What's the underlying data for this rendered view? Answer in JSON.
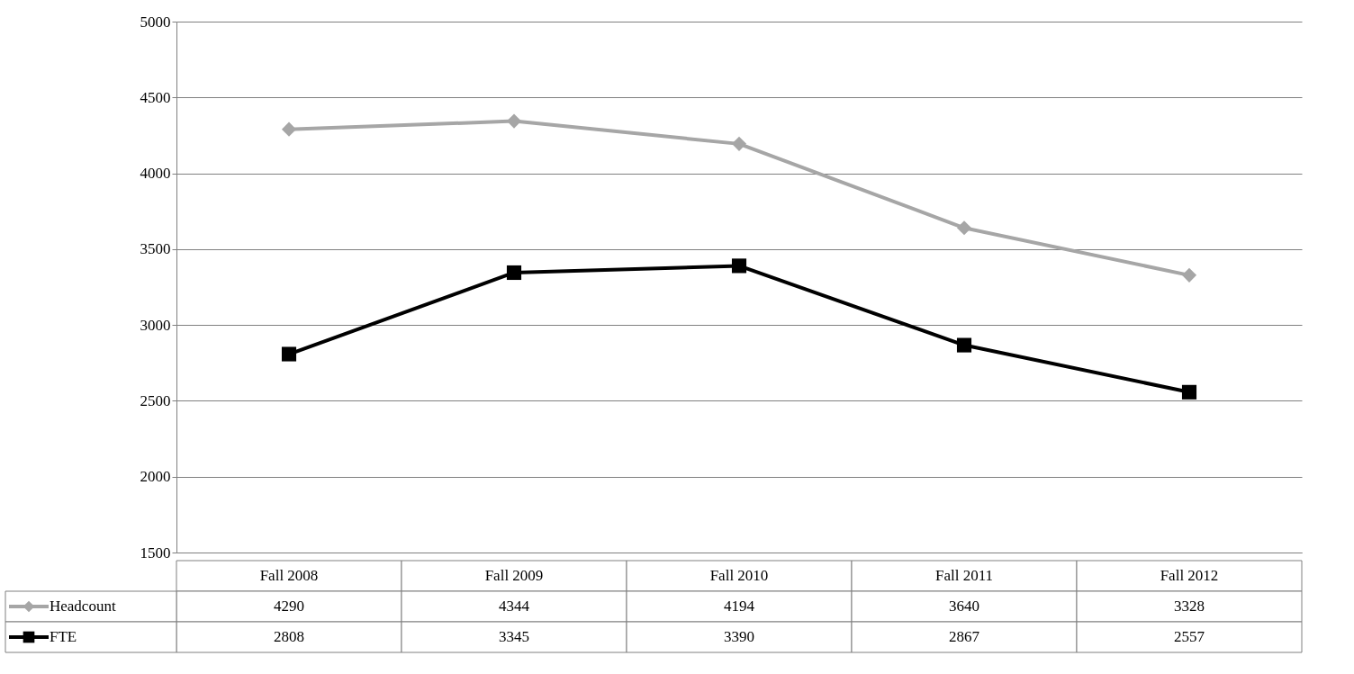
{
  "chart_data": {
    "type": "line",
    "categories": [
      "Fall 2008",
      "Fall 2009",
      "Fall 2010",
      "Fall 2011",
      "Fall 2012"
    ],
    "series": [
      {
        "name": "Headcount",
        "color": "#a6a6a6",
        "marker": "diamond",
        "values": [
          4290,
          4344,
          4194,
          3640,
          3328
        ]
      },
      {
        "name": "FTE",
        "color": "#000000",
        "marker": "square",
        "values": [
          2808,
          3345,
          3390,
          2867,
          2557
        ]
      }
    ],
    "ylim": [
      1500,
      5000
    ],
    "yticks": [
      1500,
      2000,
      2500,
      3000,
      3500,
      4000,
      4500,
      5000
    ],
    "grid": "y",
    "legend": "bottom",
    "data_labels": true,
    "line_style": "solid"
  }
}
